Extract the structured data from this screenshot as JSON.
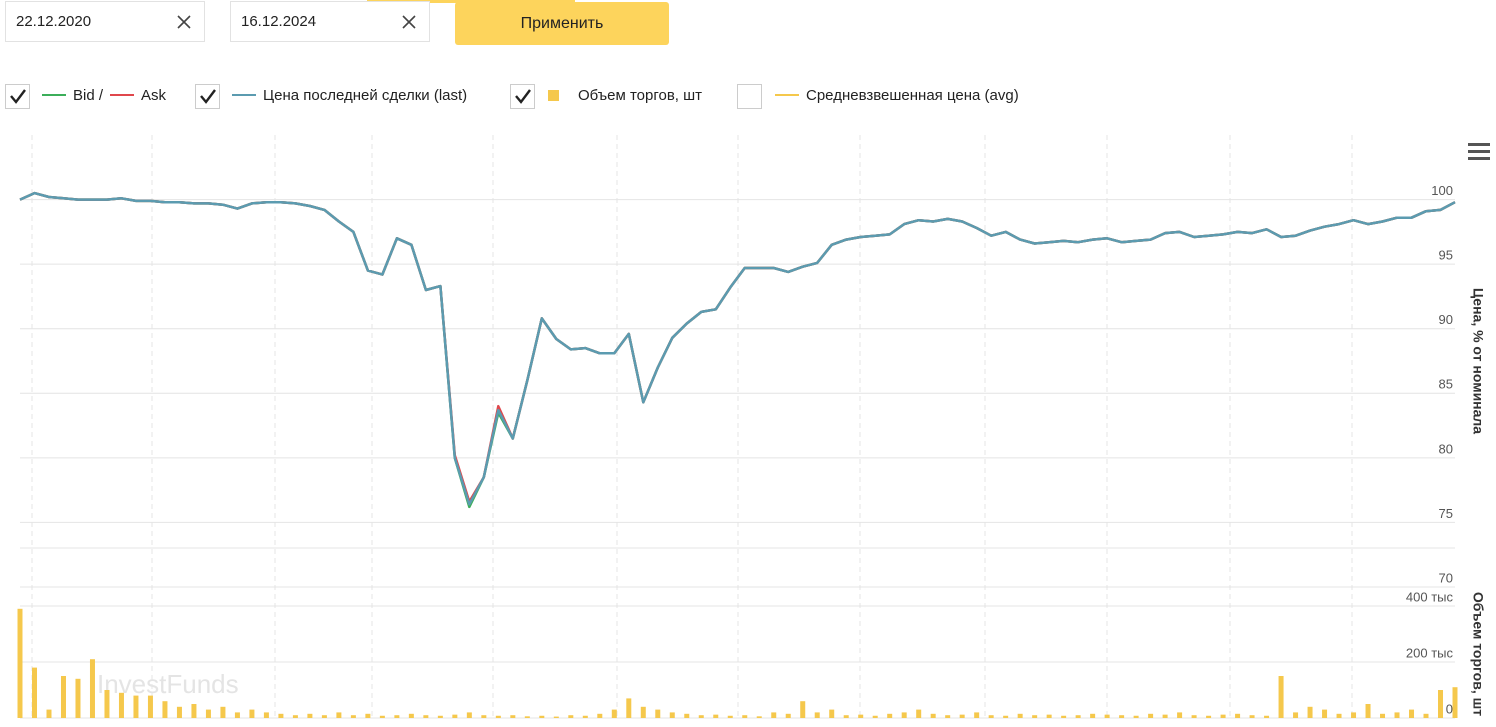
{
  "filters": {
    "date_from": "22.12.2020",
    "date_to": "16.12.2024",
    "apply": "Применить"
  },
  "hidden_series": [
    {
      "name": "Средневзвешенная цена (avg)",
      "color": "#f5c84c",
      "visible": false
    }
  ],
  "watermark": "InvestFunds",
  "chart_data": [
    {
      "type": "line",
      "y_label": "Цена, % от номинала",
      "ylim": [
        70,
        105
      ],
      "yticks": [
        70,
        75,
        80,
        85,
        90,
        95,
        100
      ],
      "grid": true,
      "series": [
        {
          "name": "Bid /",
          "color": "#3cae5a",
          "visible": true,
          "values": [
            100.0,
            100.5,
            100.2,
            100.1,
            100.0,
            100.0,
            100.0,
            100.1,
            99.9,
            99.9,
            99.8,
            99.8,
            99.7,
            99.7,
            99.6,
            99.3,
            99.7,
            99.8,
            99.8,
            99.7,
            99.5,
            99.2,
            98.3,
            97.5,
            94.5,
            94.2,
            97.0,
            96.5,
            93.0,
            93.3,
            80.0,
            76.2,
            78.5,
            83.5,
            81.5,
            86.0,
            90.8,
            89.2,
            88.4,
            88.5,
            88.1,
            88.1,
            89.6,
            84.3,
            87.0,
            89.3,
            90.4,
            91.3,
            91.5,
            93.2,
            94.7,
            94.7,
            94.7,
            94.4,
            94.8,
            95.1,
            96.5,
            96.9,
            97.1,
            97.2,
            97.3,
            98.1,
            98.4,
            98.3,
            98.5,
            98.3,
            97.8,
            97.2,
            97.5,
            96.9,
            96.6,
            96.7,
            96.8,
            96.7,
            96.9,
            97.0,
            96.7,
            96.8,
            96.9,
            97.4,
            97.5,
            97.1,
            97.2,
            97.3,
            97.5,
            97.4,
            97.7,
            97.1,
            97.2,
            97.6,
            97.9,
            98.1,
            98.4,
            98.1,
            98.3,
            98.6,
            98.6,
            99.1,
            99.2,
            99.8
          ]
        },
        {
          "name": "Ask",
          "color": "#e0474c",
          "visible": true,
          "values": [
            100.0,
            100.5,
            100.2,
            100.1,
            100.0,
            100.0,
            100.0,
            100.1,
            99.9,
            99.9,
            99.8,
            99.8,
            99.7,
            99.7,
            99.6,
            99.3,
            99.7,
            99.8,
            99.8,
            99.7,
            99.5,
            99.2,
            98.3,
            97.5,
            94.5,
            94.2,
            97.0,
            96.5,
            93.0,
            93.3,
            80.2,
            76.6,
            78.5,
            84.0,
            81.5,
            86.0,
            90.8,
            89.2,
            88.4,
            88.5,
            88.1,
            88.1,
            89.6,
            84.3,
            87.0,
            89.3,
            90.4,
            91.3,
            91.5,
            93.2,
            94.7,
            94.7,
            94.7,
            94.4,
            94.8,
            95.1,
            96.5,
            96.9,
            97.1,
            97.2,
            97.3,
            98.1,
            98.4,
            98.3,
            98.5,
            98.3,
            97.8,
            97.2,
            97.5,
            96.9,
            96.6,
            96.7,
            96.8,
            96.7,
            96.9,
            97.0,
            96.7,
            96.8,
            96.9,
            97.4,
            97.5,
            97.1,
            97.2,
            97.3,
            97.5,
            97.4,
            97.7,
            97.1,
            97.2,
            97.6,
            97.9,
            98.1,
            98.4,
            98.1,
            98.3,
            98.6,
            98.6,
            99.1,
            99.2,
            99.8
          ]
        },
        {
          "name": "Цена последней сделки (last)",
          "color": "#5b9bb0",
          "visible": true,
          "values": [
            100.0,
            100.5,
            100.2,
            100.1,
            100.0,
            100.0,
            100.0,
            100.1,
            99.9,
            99.9,
            99.8,
            99.8,
            99.7,
            99.7,
            99.6,
            99.3,
            99.7,
            99.8,
            99.8,
            99.7,
            99.5,
            99.2,
            98.3,
            97.5,
            94.5,
            94.2,
            97.0,
            96.5,
            93.0,
            93.3,
            80.0,
            76.4,
            78.5,
            83.7,
            81.5,
            86.0,
            90.8,
            89.2,
            88.4,
            88.5,
            88.1,
            88.1,
            89.6,
            84.3,
            87.0,
            89.3,
            90.4,
            91.3,
            91.5,
            93.2,
            94.7,
            94.7,
            94.7,
            94.4,
            94.8,
            95.1,
            96.5,
            96.9,
            97.1,
            97.2,
            97.3,
            98.1,
            98.4,
            98.3,
            98.5,
            98.3,
            97.8,
            97.2,
            97.5,
            96.9,
            96.6,
            96.7,
            96.8,
            96.7,
            96.9,
            97.0,
            96.7,
            96.8,
            96.9,
            97.4,
            97.5,
            97.1,
            97.2,
            97.3,
            97.5,
            97.4,
            97.7,
            97.1,
            97.2,
            97.6,
            97.9,
            98.1,
            98.4,
            98.1,
            98.3,
            98.6,
            98.6,
            99.1,
            99.2,
            99.8
          ]
        }
      ]
    },
    {
      "type": "bar",
      "y_label": "Объем торгов, шт",
      "ylim": [
        0,
        400000
      ],
      "yticks": [
        0,
        {
          "value": 200000,
          "label": "200 тыс"
        },
        {
          "value": 400000,
          "label": "400 тыс"
        }
      ],
      "grid": true,
      "series": [
        {
          "name": "Объем торгов, шт",
          "color": "#f5c84c",
          "visible": true,
          "values": [
            390000,
            180000,
            30000,
            150000,
            140000,
            210000,
            100000,
            90000,
            80000,
            80000,
            60000,
            40000,
            50000,
            30000,
            40000,
            20000,
            30000,
            20000,
            15000,
            10000,
            15000,
            10000,
            20000,
            10000,
            15000,
            8000,
            10000,
            15000,
            10000,
            8000,
            12000,
            20000,
            10000,
            8000,
            10000,
            6000,
            8000,
            5000,
            10000,
            8000,
            15000,
            30000,
            70000,
            40000,
            30000,
            20000,
            15000,
            10000,
            12000,
            8000,
            10000,
            6000,
            20000,
            15000,
            60000,
            20000,
            30000,
            10000,
            12000,
            8000,
            15000,
            20000,
            30000,
            15000,
            10000,
            12000,
            20000,
            10000,
            8000,
            15000,
            10000,
            12000,
            8000,
            10000,
            15000,
            12000,
            10000,
            8000,
            15000,
            12000,
            20000,
            10000,
            8000,
            12000,
            15000,
            10000,
            8000,
            150000,
            20000,
            40000,
            30000,
            15000,
            20000,
            50000,
            15000,
            20000,
            30000,
            15000,
            100000,
            110000
          ]
        }
      ]
    }
  ]
}
